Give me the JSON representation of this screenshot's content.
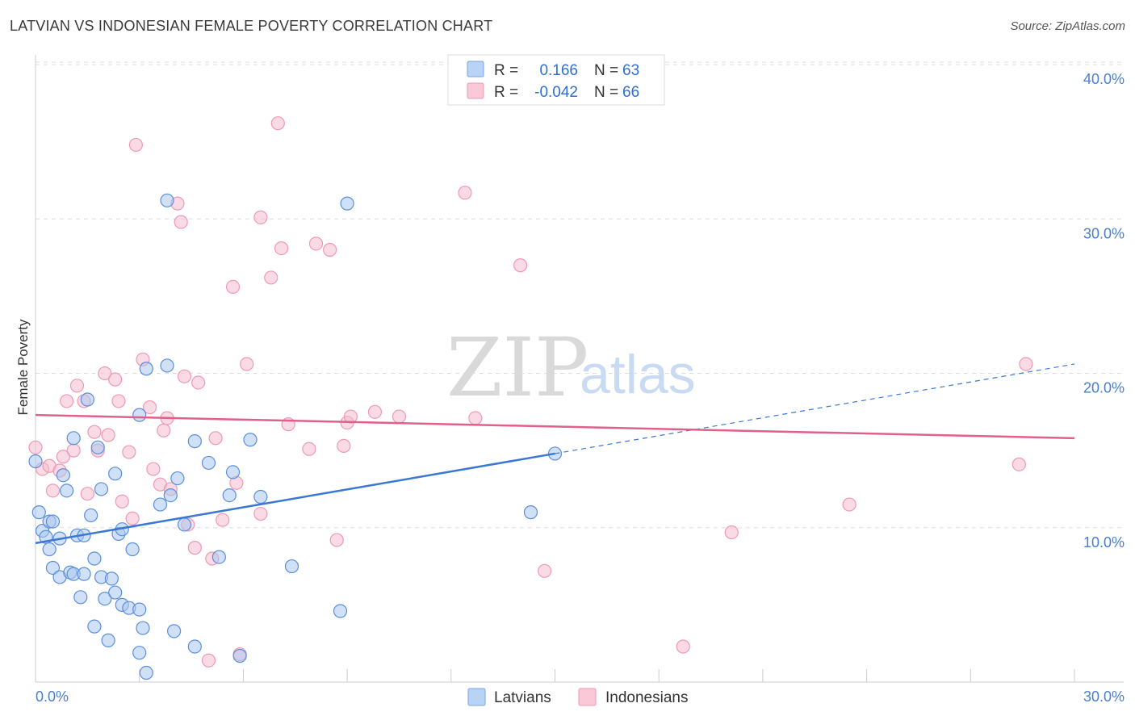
{
  "header": {
    "title": "LATVIAN VS INDONESIAN FEMALE POVERTY CORRELATION CHART",
    "source": "Source: ZipAtlas.com"
  },
  "watermark": {
    "zip": "ZIP",
    "atlas": "atlas"
  },
  "legend": {
    "r_label": "R =",
    "n_label": "N =",
    "rows": [
      {
        "r": "0.166",
        "n": "63",
        "fill": "#b9d3f4",
        "stroke": "#7aa6e3"
      },
      {
        "r": "-0.042",
        "n": "66",
        "fill": "#fac8d6",
        "stroke": "#ee9ab2"
      }
    ]
  },
  "colors": {
    "latvians": "#3a78d4",
    "latvians_fill": "#a9c6ef",
    "indonesians": "#e0608a",
    "indonesians_fill": "#f6bccd",
    "grid": "#dddddd",
    "axis": "#cccccc"
  },
  "chart_data": {
    "type": "scatter",
    "title": "LATVIAN VS INDONESIAN FEMALE POVERTY CORRELATION CHART",
    "xlabel": "",
    "ylabel": "Female Poverty",
    "xlim": [
      0,
      30
    ],
    "ylim": [
      0,
      40
    ],
    "x_tick_labels": [
      "0.0%",
      "30.0%"
    ],
    "y_ticks": [
      10,
      20,
      30,
      40
    ],
    "y_tick_labels": [
      "10.0%",
      "20.0%",
      "30.0%",
      "40.0%"
    ],
    "grid": true,
    "legend_position": "top-center",
    "series": [
      {
        "name": "Latvians",
        "r": 0.166,
        "n": 63,
        "trend": {
          "x0": 0,
          "y0": 9.0,
          "x1": 15,
          "y1": 14.8,
          "dashed_to_x": 30,
          "dashed_to_y": 20.6
        },
        "points": [
          [
            0,
            14.3
          ],
          [
            0.1,
            11.0
          ],
          [
            0.2,
            9.8
          ],
          [
            0.3,
            9.4
          ],
          [
            0.4,
            8.6
          ],
          [
            0.4,
            10.4
          ],
          [
            0.5,
            10.4
          ],
          [
            0.5,
            7.4
          ],
          [
            0.7,
            6.8
          ],
          [
            0.7,
            9.3
          ],
          [
            0.8,
            13.4
          ],
          [
            0.9,
            12.4
          ],
          [
            1.0,
            7.1
          ],
          [
            1.1,
            7.0
          ],
          [
            1.1,
            15.8
          ],
          [
            1.2,
            9.5
          ],
          [
            1.3,
            5.5
          ],
          [
            1.4,
            7.0
          ],
          [
            1.4,
            9.5
          ],
          [
            1.5,
            18.3
          ],
          [
            1.6,
            10.8
          ],
          [
            1.7,
            3.6
          ],
          [
            1.7,
            8.0
          ],
          [
            1.8,
            15.2
          ],
          [
            1.9,
            12.5
          ],
          [
            1.9,
            6.8
          ],
          [
            2.0,
            5.4
          ],
          [
            2.1,
            2.7
          ],
          [
            2.2,
            6.7
          ],
          [
            2.3,
            5.8
          ],
          [
            2.3,
            13.5
          ],
          [
            2.4,
            9.6
          ],
          [
            2.5,
            9.9
          ],
          [
            2.5,
            5.0
          ],
          [
            2.7,
            4.8
          ],
          [
            2.8,
            8.6
          ],
          [
            3.0,
            17.3
          ],
          [
            3.0,
            4.7
          ],
          [
            3.0,
            1.9
          ],
          [
            3.1,
            3.5
          ],
          [
            3.2,
            0.6
          ],
          [
            3.2,
            20.3
          ],
          [
            3.6,
            11.5
          ],
          [
            3.8,
            31.2
          ],
          [
            3.8,
            20.5
          ],
          [
            3.9,
            12.1
          ],
          [
            4.0,
            3.3
          ],
          [
            4.1,
            13.2
          ],
          [
            4.3,
            10.2
          ],
          [
            4.6,
            2.3
          ],
          [
            4.6,
            15.6
          ],
          [
            5.0,
            14.2
          ],
          [
            5.3,
            8.1
          ],
          [
            5.6,
            12.1
          ],
          [
            5.7,
            13.6
          ],
          [
            5.9,
            1.7
          ],
          [
            6.2,
            15.7
          ],
          [
            6.5,
            12.0
          ],
          [
            7.4,
            7.5
          ],
          [
            8.8,
            4.6
          ],
          [
            9.0,
            31.0
          ],
          [
            14.3,
            11.0
          ],
          [
            15.0,
            14.8
          ]
        ]
      },
      {
        "name": "Indonesians",
        "r": -0.042,
        "n": 66,
        "trend": {
          "x0": 0,
          "y0": 17.3,
          "x1": 30,
          "y1": 15.8
        },
        "points": [
          [
            0,
            15.2
          ],
          [
            0.2,
            13.8
          ],
          [
            0.4,
            14.0
          ],
          [
            0.5,
            12.4
          ],
          [
            0.7,
            13.7
          ],
          [
            0.8,
            14.6
          ],
          [
            0.9,
            18.2
          ],
          [
            1.1,
            15.0
          ],
          [
            1.2,
            19.2
          ],
          [
            1.4,
            18.2
          ],
          [
            1.5,
            12.2
          ],
          [
            1.7,
            16.2
          ],
          [
            1.8,
            15.0
          ],
          [
            2.0,
            20.0
          ],
          [
            2.1,
            16.0
          ],
          [
            2.3,
            19.6
          ],
          [
            2.4,
            18.2
          ],
          [
            2.5,
            11.7
          ],
          [
            2.7,
            14.9
          ],
          [
            2.8,
            10.6
          ],
          [
            2.9,
            34.8
          ],
          [
            3.1,
            20.9
          ],
          [
            3.3,
            17.8
          ],
          [
            3.4,
            13.8
          ],
          [
            3.6,
            12.8
          ],
          [
            3.7,
            16.3
          ],
          [
            3.8,
            17.1
          ],
          [
            3.9,
            12.5
          ],
          [
            4.1,
            31.0
          ],
          [
            4.2,
            29.8
          ],
          [
            4.3,
            19.8
          ],
          [
            4.4,
            10.2
          ],
          [
            4.6,
            8.7
          ],
          [
            4.7,
            19.4
          ],
          [
            5.0,
            1.4
          ],
          [
            5.1,
            8.0
          ],
          [
            5.2,
            15.8
          ],
          [
            5.4,
            10.5
          ],
          [
            5.7,
            25.6
          ],
          [
            5.8,
            12.9
          ],
          [
            5.9,
            1.8
          ],
          [
            6.1,
            20.6
          ],
          [
            6.5,
            30.1
          ],
          [
            6.5,
            10.9
          ],
          [
            6.8,
            26.2
          ],
          [
            7.0,
            36.2
          ],
          [
            7.1,
            28.1
          ],
          [
            7.3,
            16.7
          ],
          [
            7.9,
            15.1
          ],
          [
            8.1,
            28.4
          ],
          [
            8.5,
            28.0
          ],
          [
            8.7,
            9.2
          ],
          [
            8.9,
            15.3
          ],
          [
            9.0,
            16.8
          ],
          [
            9.1,
            17.2
          ],
          [
            9.8,
            17.5
          ],
          [
            10.5,
            17.2
          ],
          [
            12.4,
            31.7
          ],
          [
            12.7,
            17.1
          ],
          [
            14.0,
            27.0
          ],
          [
            14.7,
            7.2
          ],
          [
            18.7,
            2.3
          ],
          [
            20.1,
            9.7
          ],
          [
            23.5,
            11.5
          ],
          [
            28.4,
            14.1
          ],
          [
            28.6,
            20.6
          ]
        ]
      }
    ]
  },
  "bottom_legend": [
    {
      "label": "Latvians",
      "fill": "#b9d3f4",
      "stroke": "#7aa6e3"
    },
    {
      "label": "Indonesians",
      "fill": "#fac8d6",
      "stroke": "#ee9ab2"
    }
  ]
}
